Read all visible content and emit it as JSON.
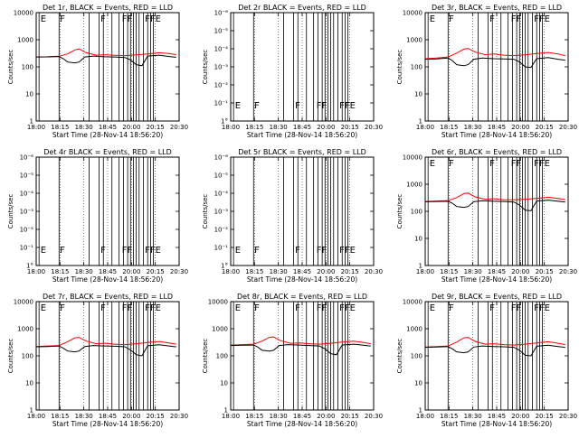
{
  "chart_data": [
    {
      "type": "line",
      "title": "Det 1r, BLACK = Events, RED = LLD",
      "xlabel": "Start Time (28-Nov-14 18:56:20)",
      "ylabel": "Counts/sec",
      "scale": "log",
      "ylim": [
        1,
        10000
      ],
      "ytick_labels": [
        "1",
        "10",
        "100",
        "1000",
        "10000"
      ],
      "xtick_labels": [
        "18:00",
        "18:15",
        "18:30",
        "18:45",
        "20:00",
        "20:15",
        "20:30"
      ],
      "flags": [
        "E",
        "F",
        "F",
        "FF",
        "FFE"
      ],
      "series": [
        {
          "color": "#ff0000",
          "x": [
            0,
            0.08,
            0.16,
            0.22,
            0.27,
            0.3,
            0.35,
            0.42,
            0.48,
            0.55,
            0.62,
            0.7,
            0.78,
            0.86,
            0.93,
            0.98
          ],
          "y": [
            230,
            235,
            245,
            300,
            420,
            460,
            330,
            270,
            280,
            265,
            260,
            275,
            300,
            330,
            310,
            280
          ]
        },
        {
          "color": "#000000",
          "x": [
            0,
            0.08,
            0.16,
            0.19,
            0.22,
            0.27,
            0.3,
            0.34,
            0.4,
            0.48,
            0.55,
            0.62,
            0.66,
            0.7,
            0.74,
            0.78,
            0.86,
            0.93,
            0.96,
            0.98
          ],
          "y": [
            230,
            232,
            240,
            200,
            150,
            140,
            150,
            230,
            250,
            235,
            230,
            220,
            180,
            120,
            110,
            250,
            270,
            240,
            230,
            225
          ]
        }
      ]
    },
    {
      "type": "line",
      "title": "Det 2r BLACK = Events, RED = LLD",
      "xlabel": "Start Time (28-Nov-14 18:56:20)",
      "ylabel": "Counts/sec",
      "scale": "log",
      "ylim": [
        1,
        1e-06
      ],
      "ytick_labels": [
        "1°",
        "10⁻¹",
        "10⁻²",
        "10⁻³",
        "10⁻⁴",
        "10⁻⁵",
        "10⁻⁶"
      ],
      "xtick_labels": [
        "18:00",
        "18:15",
        "18:30",
        "18:45",
        "20:00",
        "20:15",
        "20:30"
      ],
      "flags": [
        "E",
        "F",
        "F",
        "FF",
        "FFE"
      ],
      "series": []
    },
    {
      "type": "line",
      "title": "Det 3r, BLACK = Events, RED = LLD",
      "xlabel": "Start Time (28-Nov-14 18:56:20)",
      "ylabel": "Counts/sec",
      "scale": "log",
      "ylim": [
        1,
        10000
      ],
      "ytick_labels": [
        "1",
        "10",
        "100",
        "1000",
        "10000"
      ],
      "xtick_labels": [
        "18:00",
        "18:15",
        "18:30",
        "18:45",
        "20:00",
        "20:15",
        "20:30"
      ],
      "flags": [
        "E",
        "F",
        "F",
        "FF",
        "FFE"
      ],
      "series": [
        {
          "color": "#ff0000",
          "x": [
            0,
            0.08,
            0.16,
            0.22,
            0.27,
            0.3,
            0.35,
            0.42,
            0.48,
            0.55,
            0.62,
            0.7,
            0.78,
            0.86,
            0.93,
            0.98
          ],
          "y": [
            200,
            210,
            230,
            320,
            450,
            480,
            350,
            280,
            300,
            270,
            260,
            280,
            310,
            340,
            300,
            260
          ]
        },
        {
          "color": "#000000",
          "x": [
            0,
            0.08,
            0.16,
            0.19,
            0.22,
            0.27,
            0.3,
            0.34,
            0.4,
            0.48,
            0.55,
            0.62,
            0.66,
            0.7,
            0.74,
            0.78,
            0.86,
            0.93,
            0.96,
            0.98
          ],
          "y": [
            190,
            195,
            210,
            170,
            120,
            110,
            120,
            190,
            210,
            200,
            195,
            190,
            150,
            100,
            95,
            200,
            220,
            190,
            180,
            175
          ]
        }
      ]
    },
    {
      "type": "line",
      "title": "Det 4r BLACK = Events, RED = LLD",
      "xlabel": "Start Time (28-Nov-14 18:56:20)",
      "ylabel": "Counts/sec",
      "scale": "log",
      "ylim": [
        1,
        1e-06
      ],
      "ytick_labels": [
        "1°",
        "10⁻¹",
        "10⁻²",
        "10⁻³",
        "10⁻⁴",
        "10⁻⁵",
        "10⁻⁶"
      ],
      "xtick_labels": [
        "18:00",
        "18:15",
        "18:30",
        "18:45",
        "20:00",
        "20:15",
        "20:30"
      ],
      "flags": [
        "E",
        "F",
        "F",
        "FF",
        "FFE"
      ],
      "series": []
    },
    {
      "type": "line",
      "title": "Det 5r BLACK = Events, RED = LLD",
      "xlabel": "Start Time (28-Nov-14 18:56:20)",
      "ylabel": "Counts/sec",
      "scale": "log",
      "ylim": [
        1,
        1e-06
      ],
      "ytick_labels": [
        "1°",
        "10⁻¹",
        "10⁻²",
        "10⁻³",
        "10⁻⁴",
        "10⁻⁵",
        "10⁻⁶"
      ],
      "xtick_labels": [
        "18:00",
        "18:15",
        "18:30",
        "18:45",
        "20:00",
        "20:15",
        "20:30"
      ],
      "flags": [
        "E",
        "F",
        "F",
        "FF",
        "FFE"
      ],
      "series": []
    },
    {
      "type": "line",
      "title": "Det 6r, BLACK = Events, RED = LLD",
      "xlabel": "Start Time (28-Nov-14 18:56:20)",
      "ylabel": "Counts/sec",
      "scale": "log",
      "ylim": [
        1,
        10000
      ],
      "ytick_labels": [
        "1",
        "10",
        "100",
        "1000",
        "10000"
      ],
      "xtick_labels": [
        "18:00",
        "18:15",
        "18:30",
        "18:45",
        "20:00",
        "20:15",
        "20:30"
      ],
      "flags": [
        "E",
        "F",
        "F",
        "FF",
        "FFE"
      ],
      "series": [
        {
          "color": "#ff0000",
          "x": [
            0,
            0.08,
            0.16,
            0.22,
            0.27,
            0.3,
            0.35,
            0.42,
            0.48,
            0.55,
            0.62,
            0.7,
            0.78,
            0.86,
            0.93,
            0.98
          ],
          "y": [
            230,
            240,
            250,
            320,
            450,
            470,
            340,
            280,
            290,
            270,
            265,
            280,
            300,
            330,
            300,
            270
          ]
        },
        {
          "color": "#000000",
          "x": [
            0,
            0.08,
            0.16,
            0.19,
            0.22,
            0.27,
            0.3,
            0.34,
            0.4,
            0.48,
            0.55,
            0.62,
            0.66,
            0.7,
            0.74,
            0.78,
            0.86,
            0.93,
            0.96,
            0.98
          ],
          "y": [
            225,
            230,
            235,
            200,
            150,
            140,
            150,
            225,
            245,
            235,
            230,
            220,
            170,
            110,
            105,
            240,
            260,
            235,
            225,
            220
          ]
        }
      ]
    },
    {
      "type": "line",
      "title": "Det 7r, BLACK = Events, RED = LLD",
      "xlabel": "Start Time (28-Nov-14 18:56:20)",
      "ylabel": "Counts/sec",
      "scale": "log",
      "ylim": [
        1,
        10000
      ],
      "ytick_labels": [
        "1",
        "10",
        "100",
        "1000",
        "10000"
      ],
      "xtick_labels": [
        "18:00",
        "18:15",
        "18:30",
        "18:45",
        "20:00",
        "20:15",
        "20:30"
      ],
      "flags": [
        "E",
        "F",
        "F",
        "FF",
        "FFE"
      ],
      "series": [
        {
          "color": "#ff0000",
          "x": [
            0,
            0.08,
            0.16,
            0.22,
            0.27,
            0.3,
            0.35,
            0.42,
            0.48,
            0.55,
            0.62,
            0.7,
            0.78,
            0.86,
            0.93,
            0.98
          ],
          "y": [
            220,
            230,
            240,
            330,
            460,
            480,
            350,
            280,
            290,
            270,
            260,
            280,
            310,
            340,
            300,
            270
          ]
        },
        {
          "color": "#000000",
          "x": [
            0,
            0.08,
            0.16,
            0.19,
            0.22,
            0.27,
            0.3,
            0.34,
            0.4,
            0.48,
            0.55,
            0.62,
            0.66,
            0.7,
            0.74,
            0.78,
            0.86,
            0.93,
            0.96,
            0.98
          ],
          "y": [
            215,
            220,
            230,
            190,
            150,
            140,
            150,
            220,
            240,
            230,
            225,
            215,
            165,
            110,
            100,
            235,
            255,
            230,
            220,
            215
          ]
        }
      ]
    },
    {
      "type": "line",
      "title": "Det 8r, BLACK = Events, RED = LLD",
      "xlabel": "Start Time (28-Nov-14 18:56:20)",
      "ylabel": "Counts/sec",
      "scale": "log",
      "ylim": [
        1,
        10000
      ],
      "ytick_labels": [
        "1",
        "10",
        "100",
        "1000",
        "10000"
      ],
      "xtick_labels": [
        "18:00",
        "18:15",
        "18:30",
        "18:45",
        "20:00",
        "20:15",
        "20:30"
      ],
      "flags": [
        "E",
        "F",
        "F",
        "FF",
        "FFE"
      ],
      "series": [
        {
          "color": "#ff0000",
          "x": [
            0,
            0.08,
            0.16,
            0.22,
            0.27,
            0.3,
            0.35,
            0.42,
            0.48,
            0.55,
            0.62,
            0.7,
            0.78,
            0.86,
            0.93,
            0.98
          ],
          "y": [
            250,
            260,
            270,
            350,
            480,
            500,
            360,
            290,
            300,
            280,
            270,
            290,
            320,
            350,
            310,
            280
          ]
        },
        {
          "color": "#000000",
          "x": [
            0,
            0.08,
            0.16,
            0.19,
            0.22,
            0.27,
            0.3,
            0.34,
            0.4,
            0.48,
            0.55,
            0.62,
            0.66,
            0.7,
            0.74,
            0.78,
            0.86,
            0.93,
            0.96,
            0.98
          ],
          "y": [
            240,
            245,
            250,
            210,
            160,
            150,
            160,
            240,
            260,
            250,
            240,
            230,
            180,
            120,
            110,
            250,
            270,
            245,
            235,
            230
          ]
        }
      ]
    },
    {
      "type": "line",
      "title": "Det 9r, BLACK = Events, RED = LLD",
      "xlabel": "Start Time (28-Nov-14 18:56:20)",
      "ylabel": "Counts/sec",
      "scale": "log",
      "ylim": [
        1,
        10000
      ],
      "ytick_labels": [
        "1",
        "10",
        "100",
        "1000",
        "10000"
      ],
      "xtick_labels": [
        "18:00",
        "18:15",
        "18:30",
        "18:45",
        "20:00",
        "20:15",
        "20:30"
      ],
      "flags": [
        "E",
        "F",
        "F",
        "FF",
        "FFE"
      ],
      "series": [
        {
          "color": "#ff0000",
          "x": [
            0,
            0.08,
            0.16,
            0.22,
            0.27,
            0.3,
            0.35,
            0.42,
            0.48,
            0.55,
            0.62,
            0.7,
            0.78,
            0.86,
            0.93,
            0.98
          ],
          "y": [
            210,
            220,
            230,
            320,
            460,
            480,
            340,
            270,
            280,
            260,
            250,
            270,
            300,
            330,
            290,
            260
          ]
        },
        {
          "color": "#000000",
          "x": [
            0,
            0.08,
            0.16,
            0.19,
            0.22,
            0.27,
            0.3,
            0.34,
            0.4,
            0.48,
            0.55,
            0.62,
            0.66,
            0.7,
            0.74,
            0.78,
            0.86,
            0.93,
            0.96,
            0.98
          ],
          "y": [
            205,
            210,
            220,
            180,
            140,
            130,
            140,
            210,
            230,
            220,
            215,
            205,
            160,
            105,
            100,
            225,
            245,
            220,
            210,
            205
          ]
        }
      ]
    }
  ]
}
